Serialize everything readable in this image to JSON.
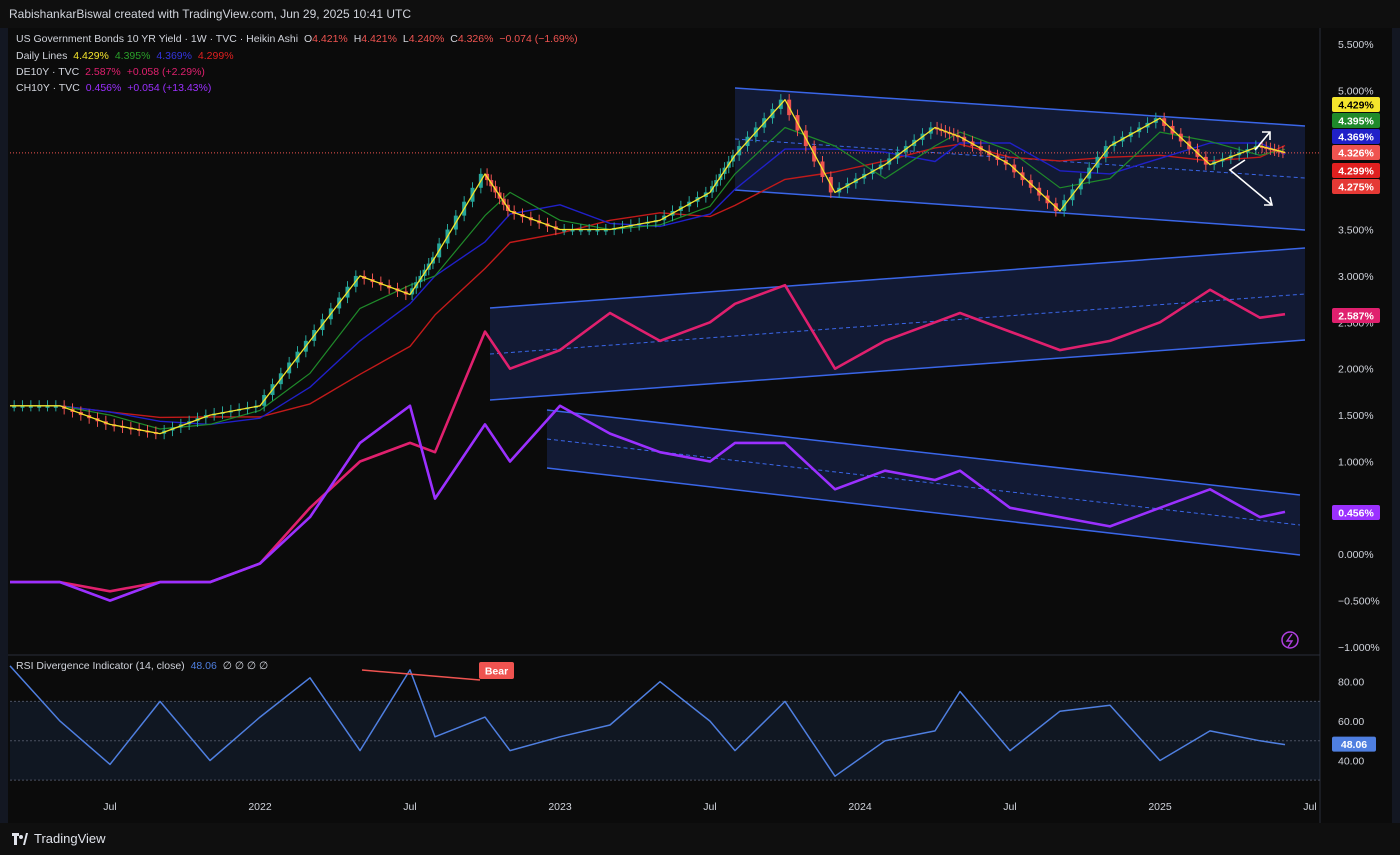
{
  "header": {
    "credit": "RabishankarBiswal created with TradingView.com, Jun 29, 2025 10:41 UTC"
  },
  "footer": {
    "brand": "TradingView"
  },
  "legend": {
    "main_title": "US Government Bonds 10 YR Yield · 1W · TVC · Heikin Ashi",
    "ohlc": {
      "o_label": "O",
      "o": "4.421%",
      "h_label": "H",
      "h": "4.421%",
      "l_label": "L",
      "l": "4.240%",
      "c_label": "C",
      "c": "4.326%",
      "chg": "−0.074 (−1.69%)"
    },
    "daily_lines": {
      "label": "Daily Lines",
      "v1": "4.429%",
      "v2": "4.395%",
      "v3": "4.369%",
      "v4": "4.299%"
    },
    "de10y": {
      "label": "DE10Y · TVC",
      "v": "2.587%",
      "chg": "+0.058 (+2.29%)"
    },
    "ch10y": {
      "label": "CH10Y · TVC",
      "v": "0.456%",
      "chg": "+0.054 (+13.43%)"
    },
    "rsi": {
      "label": "RSI Divergence Indicator (14, close)",
      "v": "48.06",
      "extras": "∅  ∅  ∅  ∅"
    }
  },
  "colors": {
    "up": "#26a69a",
    "down": "#ef5350",
    "yellow": "#f5e52c",
    "green": "#1f8a2a",
    "blue": "#2020c8",
    "red": "#c21a1a",
    "de10y": "#e0206e",
    "ch10y": "#9b30ff",
    "channel": "#3a66e8",
    "rsi": "#4f7fe0"
  },
  "chart_data": [
    {
      "type": "line",
      "title": "US Government Bonds 10 YR Yield · 1W · TVC · Heikin Ashi",
      "x_ticks": [
        "Jul",
        "2022",
        "Jul",
        "2023",
        "Jul",
        "2024",
        "Jul",
        "2025",
        "Jul"
      ],
      "x": [
        "2021-03",
        "2021-05",
        "2021-07",
        "2021-09",
        "2021-11",
        "2022-01",
        "2022-03",
        "2022-05",
        "2022-07",
        "2022-08",
        "2022-10",
        "2022-11",
        "2023-01",
        "2023-03",
        "2023-05",
        "2023-07",
        "2023-08",
        "2023-10",
        "2023-12",
        "2024-02",
        "2024-04",
        "2024-05",
        "2024-07",
        "2024-09",
        "2024-11",
        "2025-01",
        "2025-03",
        "2025-05",
        "2025-06"
      ],
      "y_ticks": [
        "5.500%",
        "5.000%",
        "4.500%",
        "4.000%",
        "3.500%",
        "3.000%",
        "2.500%",
        "2.000%",
        "1.500%",
        "1.000%",
        "0.500%",
        "0.000%",
        "−0.500%",
        "−1.000%"
      ],
      "ylim": [
        -1.0,
        5.5
      ],
      "series": [
        {
          "values": [
            1.6,
            1.6,
            1.4,
            1.3,
            1.5,
            1.6,
            2.3,
            3.0,
            2.8,
            3.2,
            4.1,
            3.7,
            3.5,
            3.5,
            3.6,
            3.9,
            4.3,
            4.9,
            3.9,
            4.2,
            4.6,
            4.5,
            4.2,
            3.7,
            4.4,
            4.7,
            4.2,
            4.4,
            4.33
          ]
        },
        {
          "name": "DE10Y · TVC",
          "values": [
            -0.3,
            -0.3,
            -0.4,
            -0.3,
            -0.3,
            -0.1,
            0.5,
            1.0,
            1.2,
            1.1,
            2.4,
            2.0,
            2.2,
            2.6,
            2.3,
            2.5,
            2.7,
            2.9,
            2.0,
            2.3,
            2.5,
            2.6,
            2.4,
            2.2,
            2.3,
            2.5,
            2.85,
            2.55,
            2.587
          ]
        },
        {
          "name": "CH10Y · TVC",
          "values": [
            -0.3,
            -0.3,
            -0.5,
            -0.3,
            -0.3,
            -0.1,
            0.4,
            1.2,
            1.6,
            0.6,
            1.4,
            1.0,
            1.6,
            1.3,
            1.1,
            1.0,
            1.2,
            1.2,
            0.7,
            0.9,
            0.8,
            0.9,
            0.5,
            0.4,
            0.3,
            0.5,
            0.7,
            0.4,
            0.456
          ]
        }
      ],
      "last_value_tags": [
        "4.429%",
        "4.395%",
        "4.369%",
        "4.326%",
        "4.299%",
        "4.275%",
        "2.587%",
        "0.456%"
      ]
    },
    {
      "type": "line",
      "title": "RSI Divergence Indicator (14, close)",
      "y_ticks": [
        "80.00",
        "60.00",
        "40.00"
      ],
      "ylim": [
        25,
        90
      ],
      "values": [
        88,
        60,
        38,
        70,
        40,
        62,
        82,
        45,
        86,
        52,
        62,
        45,
        52,
        58,
        80,
        60,
        45,
        70,
        32,
        50,
        55,
        75,
        45,
        65,
        68,
        40,
        55,
        50,
        48.06
      ],
      "last_value": "48.06",
      "annotation": "Bear"
    }
  ]
}
